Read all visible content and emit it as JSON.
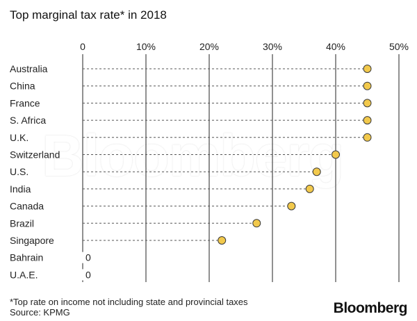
{
  "title": "Top marginal tax rate* in 2018",
  "footnote": "*Top rate on income not including state and provincial taxes",
  "source": "Source: KPMG",
  "brand": "Bloomberg",
  "watermark": "Bloomberg",
  "colors": {
    "dot_fill": "#f2c94c",
    "dot_stroke": "#3a3a3a",
    "gridline": "#222222",
    "leader": "#555555"
  },
  "chart_data": {
    "type": "scatter",
    "title": "Top marginal tax rate* in 2018",
    "x_ticks": [
      "0",
      "10%",
      "20%",
      "30%",
      "40%",
      "50%"
    ],
    "xlim": [
      0,
      50
    ],
    "grid": true,
    "categories": [
      "Australia",
      "China",
      "France",
      "S. Africa",
      "U.K.",
      "Switzerland",
      "U.S.",
      "India",
      "Canada",
      "Brazil",
      "Singapore",
      "Bahrain",
      "U.A.E."
    ],
    "values": [
      45,
      45,
      45,
      45,
      45,
      40,
      37,
      35.9,
      33,
      27.5,
      22,
      0,
      0
    ],
    "zero_label": "0"
  }
}
